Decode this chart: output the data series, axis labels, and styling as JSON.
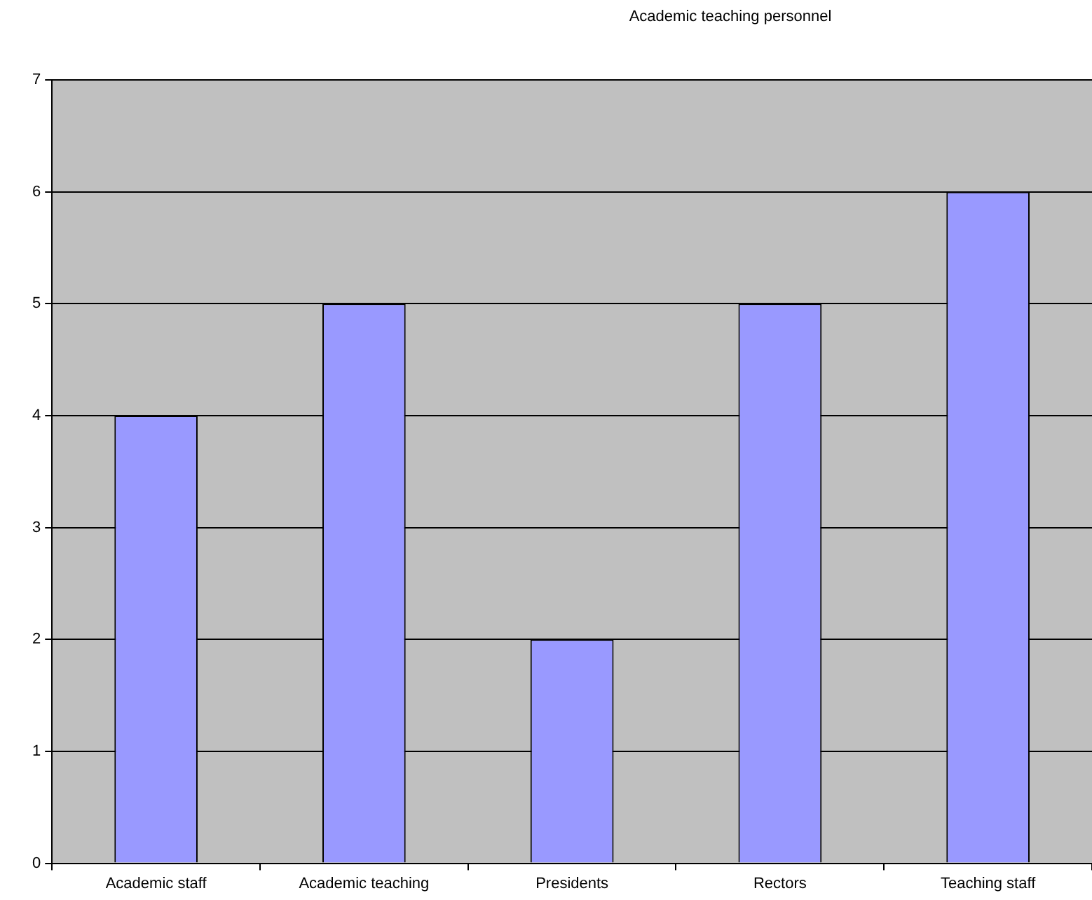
{
  "chart_data": {
    "type": "bar",
    "title": "Academic teaching personnel",
    "categories": [
      "Academic staff",
      "Academic teaching",
      "Presidents",
      "Rectors",
      "Teaching staff"
    ],
    "values": [
      4,
      5,
      2,
      5,
      6
    ],
    "color": "#9999ff",
    "ylim": [
      0,
      7
    ],
    "yticks": [
      0,
      1,
      2,
      3,
      4,
      5,
      6,
      7
    ],
    "grid": "y",
    "legend": false
  }
}
